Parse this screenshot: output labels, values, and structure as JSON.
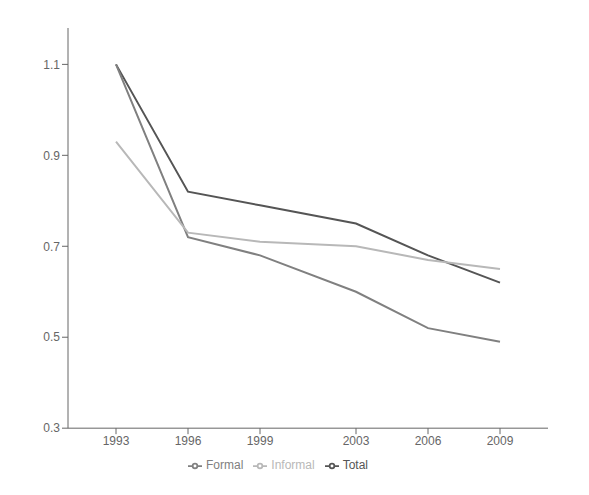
{
  "chart_data": {
    "type": "line",
    "x": [
      1993,
      1996,
      1999,
      2003,
      2006,
      2009
    ],
    "series": [
      {
        "name": "Total",
        "color": "#555555",
        "values": [
          1.1,
          0.82,
          0.79,
          0.75,
          0.68,
          0.62
        ]
      },
      {
        "name": "Formal",
        "color": "#808080",
        "values": [
          1.1,
          0.72,
          0.68,
          0.6,
          0.52,
          0.49
        ]
      },
      {
        "name": "Informal",
        "color": "#b8b8b8",
        "values": [
          0.93,
          0.73,
          0.71,
          0.7,
          0.67,
          0.65
        ]
      }
    ],
    "xlim": [
      1991,
      2011
    ],
    "xticks": [
      1993,
      1996,
      1999,
      2003,
      2006,
      2009
    ],
    "ylim": [
      0.3,
      1.18
    ],
    "yticks": [
      0.3,
      0.5,
      0.7,
      0.9,
      1.1
    ],
    "grid": false,
    "legend": "bottom"
  }
}
